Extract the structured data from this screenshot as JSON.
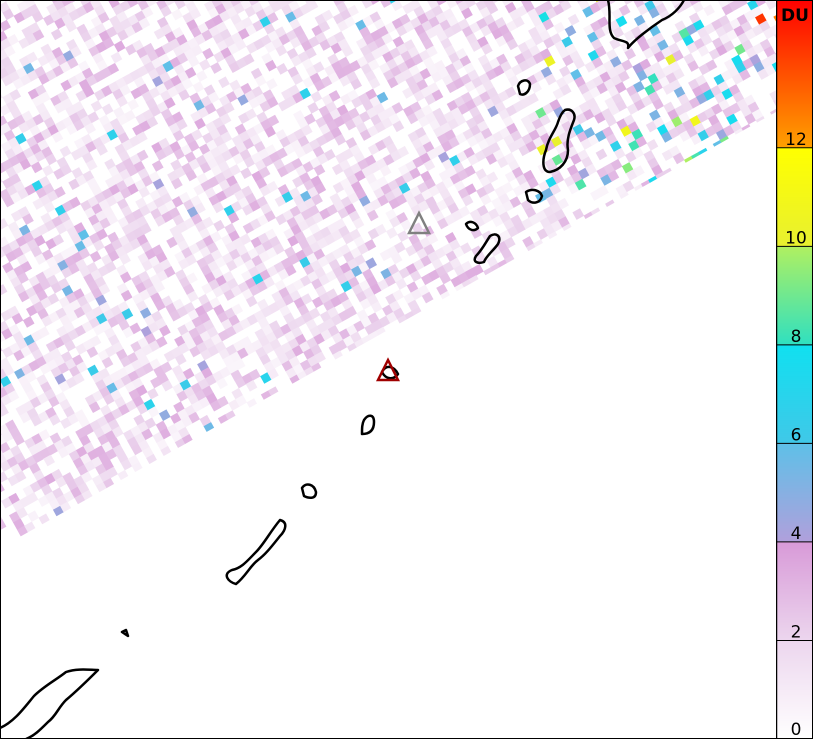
{
  "colorbar": {
    "unit": "DU",
    "ticks": [
      "0",
      "2",
      "4",
      "6",
      "8",
      "10",
      "12"
    ],
    "range": [
      0,
      15
    ],
    "stops": [
      {
        "value": 0,
        "color": "#ffffff"
      },
      {
        "value": 2,
        "color": "#ecd6ee"
      },
      {
        "value": 4,
        "color": "#d89ad8"
      },
      {
        "value": 4.01,
        "color": "#b0a0dc"
      },
      {
        "value": 6,
        "color": "#5ec0e8"
      },
      {
        "value": 6.01,
        "color": "#40c8e8"
      },
      {
        "value": 8,
        "color": "#10e0f0"
      },
      {
        "value": 8.01,
        "color": "#30e0c0"
      },
      {
        "value": 10,
        "color": "#b0f060"
      },
      {
        "value": 10.01,
        "color": "#e8f030"
      },
      {
        "value": 12,
        "color": "#ffff00"
      },
      {
        "value": 12.01,
        "color": "#ffa000"
      },
      {
        "value": 15,
        "color": "#ff0000"
      }
    ]
  },
  "markers": [
    {
      "name": "volcano-inactive",
      "color": "#808080"
    },
    {
      "name": "volcano-active",
      "color": "#a00000"
    }
  ],
  "coastline_color": "#000000"
}
